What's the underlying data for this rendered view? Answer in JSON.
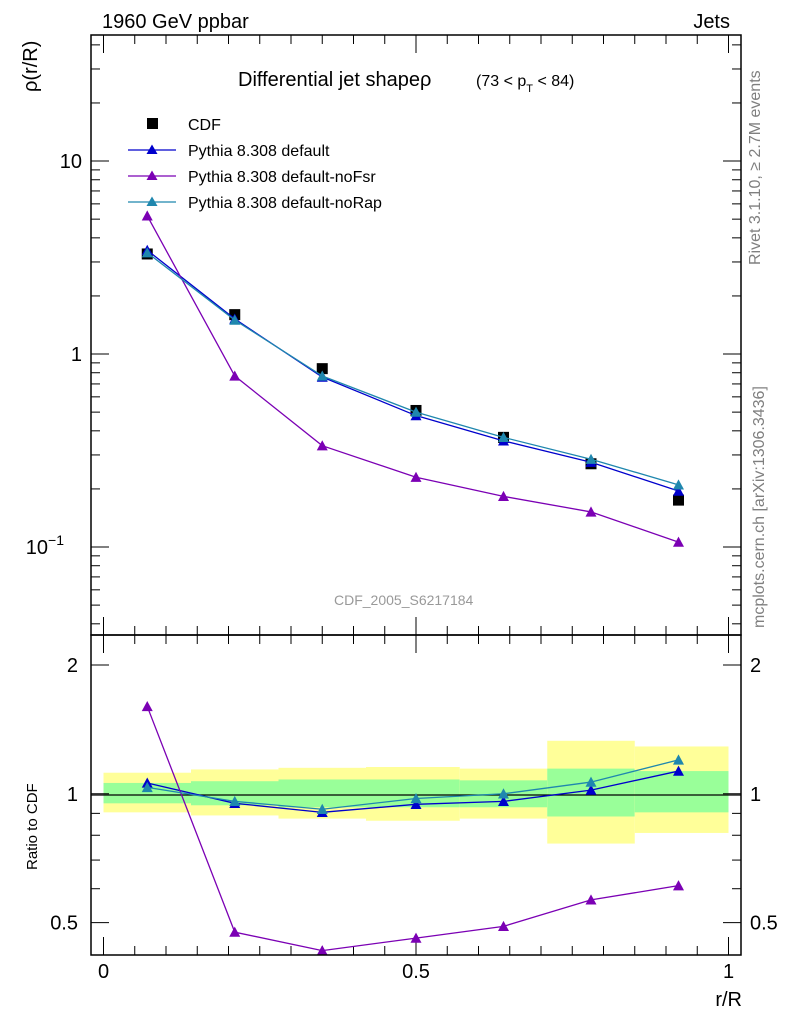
{
  "header": {
    "left": "1960 GeV ppbar",
    "right": "Jets"
  },
  "side_labels": {
    "rivet": "Rivet 3.1.10, ≥ 2.7M events",
    "mcplots": "mcplots.cern.ch [arXiv:1306.3436]"
  },
  "chart_data": [
    {
      "type": "line",
      "title": "Differential jet shapeρ",
      "title_cut": {
        "lo": "(73 < p",
        "sub": "T",
        "hi": " < 84)"
      },
      "ylabel": "ρ(r/R)",
      "xlabel": "r/R",
      "yscale": "log",
      "ylim": [
        0.035,
        45
      ],
      "xlim": [
        -0.02,
        1.02
      ],
      "yticks": [
        {
          "v": 10,
          "label": "10"
        },
        {
          "v": 1,
          "label": "1"
        },
        {
          "v": 0.1,
          "label": "10",
          "sup": "−1"
        }
      ],
      "watermark": "CDF_2005_S6217184",
      "x": [
        0.07,
        0.21,
        0.35,
        0.5,
        0.64,
        0.78,
        0.92
      ],
      "series": [
        {
          "name": "CDF",
          "kind": "data",
          "color": "#000000",
          "values": [
            3.3,
            1.6,
            0.84,
            0.51,
            0.37,
            0.27,
            0.175
          ]
        },
        {
          "name": "Pythia 8.308 default",
          "kind": "mc",
          "color": "#0000cc",
          "values": [
            3.45,
            1.52,
            0.76,
            0.48,
            0.355,
            0.275,
            0.195
          ]
        },
        {
          "name": "Pythia 8.308 default-noFsr",
          "kind": "mc",
          "color": "#7b00b4",
          "values": [
            5.2,
            0.77,
            0.335,
            0.23,
            0.183,
            0.152,
            0.106
          ]
        },
        {
          "name": "Pythia 8.308 default-noRap",
          "kind": "mc",
          "color": "#1f87ae",
          "values": [
            3.35,
            1.5,
            0.77,
            0.5,
            0.37,
            0.285,
            0.21
          ]
        }
      ]
    },
    {
      "type": "line",
      "ylabel": "Ratio to CDF",
      "xlabel": "r/R",
      "yscale": "log",
      "ylim": [
        0.42,
        2.35
      ],
      "xlim": [
        -0.02,
        1.02
      ],
      "yticks": [
        {
          "v": 2,
          "label": "2"
        },
        {
          "v": 1,
          "label": "1"
        },
        {
          "v": 0.5,
          "label": "0.5"
        }
      ],
      "xticks": [
        {
          "v": 0,
          "label": "0"
        },
        {
          "v": 0.5,
          "label": "0.5"
        },
        {
          "v": 1,
          "label": "1"
        }
      ],
      "bands": [
        {
          "x0": 0.0,
          "x1": 0.14,
          "inner": [
            0.95,
            1.06
          ],
          "outer": [
            0.905,
            1.12
          ]
        },
        {
          "x0": 0.14,
          "x1": 0.28,
          "inner": [
            0.94,
            1.07
          ],
          "outer": [
            0.89,
            1.14
          ]
        },
        {
          "x0": 0.28,
          "x1": 0.42,
          "inner": [
            0.93,
            1.08
          ],
          "outer": [
            0.875,
            1.15
          ]
        },
        {
          "x0": 0.42,
          "x1": 0.57,
          "inner": [
            0.93,
            1.08
          ],
          "outer": [
            0.865,
            1.155
          ]
        },
        {
          "x0": 0.57,
          "x1": 0.71,
          "inner": [
            0.93,
            1.075
          ],
          "outer": [
            0.875,
            1.145
          ]
        },
        {
          "x0": 0.71,
          "x1": 0.85,
          "inner": [
            0.885,
            1.145
          ],
          "outer": [
            0.765,
            1.33
          ]
        },
        {
          "x0": 0.85,
          "x1": 1.0,
          "inner": [
            0.905,
            1.13
          ],
          "outer": [
            0.81,
            1.29
          ]
        }
      ],
      "band_colors": {
        "inner": "#99ff99",
        "outer": "#ffff99"
      },
      "x": [
        0.07,
        0.21,
        0.35,
        0.5,
        0.64,
        0.78,
        0.92
      ],
      "series": [
        {
          "name": "Pythia 8.308 default",
          "color": "#0000cc",
          "values": [
            1.06,
            0.95,
            0.905,
            0.945,
            0.96,
            1.02,
            1.13
          ]
        },
        {
          "name": "Pythia 8.308 default-noFsr",
          "color": "#7b00b4",
          "values": [
            1.6,
            0.475,
            0.43,
            0.46,
            0.49,
            0.565,
            0.61
          ]
        },
        {
          "name": "Pythia 8.308 default-noRap",
          "color": "#1f87ae",
          "values": [
            1.035,
            0.96,
            0.92,
            0.975,
            1.0,
            1.065,
            1.2
          ]
        }
      ]
    }
  ]
}
